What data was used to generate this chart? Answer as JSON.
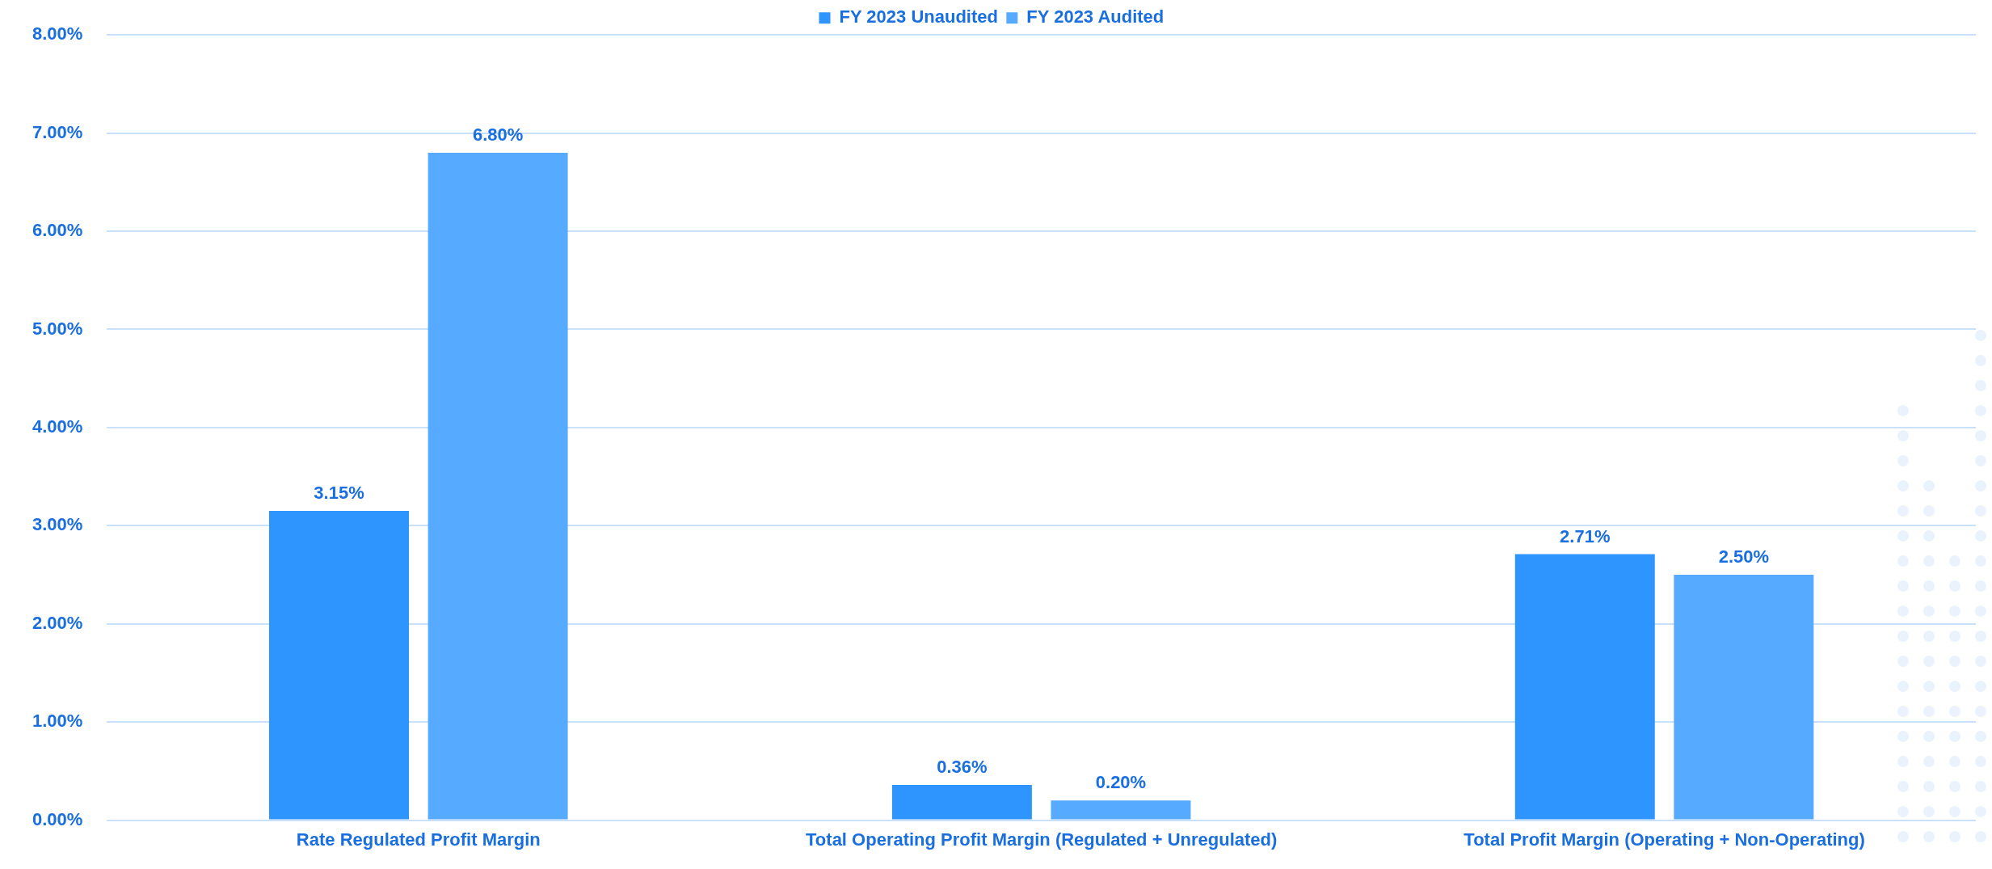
{
  "chart_data": {
    "type": "bar",
    "categories": [
      "Rate Regulated Profit Margin",
      "Total Operating Profit Margin (Regulated + Unregulated)",
      "Total Profit Margin (Operating + Non-Operating)"
    ],
    "series": [
      {
        "name": "FY 2023 Unaudited",
        "color": "#2e94fe",
        "values": [
          3.15,
          0.36,
          2.71
        ],
        "value_labels": [
          "3.15%",
          "0.36%",
          "2.71%"
        ]
      },
      {
        "name": "FY 2023 Audited",
        "color": "#56aaff",
        "values": [
          6.8,
          0.2,
          2.5
        ],
        "value_labels": [
          "6.80%",
          "0.20%",
          "2.50%"
        ]
      }
    ],
    "ylim": [
      0,
      8
    ],
    "yticks": [
      {
        "value": 0,
        "label": "0.00%"
      },
      {
        "value": 1,
        "label": "1.00%"
      },
      {
        "value": 2,
        "label": "2.00%"
      },
      {
        "value": 3,
        "label": "3.00%"
      },
      {
        "value": 4,
        "label": "4.00%"
      },
      {
        "value": 5,
        "label": "5.00%"
      },
      {
        "value": 6,
        "label": "6.00%"
      },
      {
        "value": 7,
        "label": "7.00%"
      },
      {
        "value": 8,
        "label": "8.00%"
      }
    ],
    "grid": "y",
    "legend": "top"
  }
}
